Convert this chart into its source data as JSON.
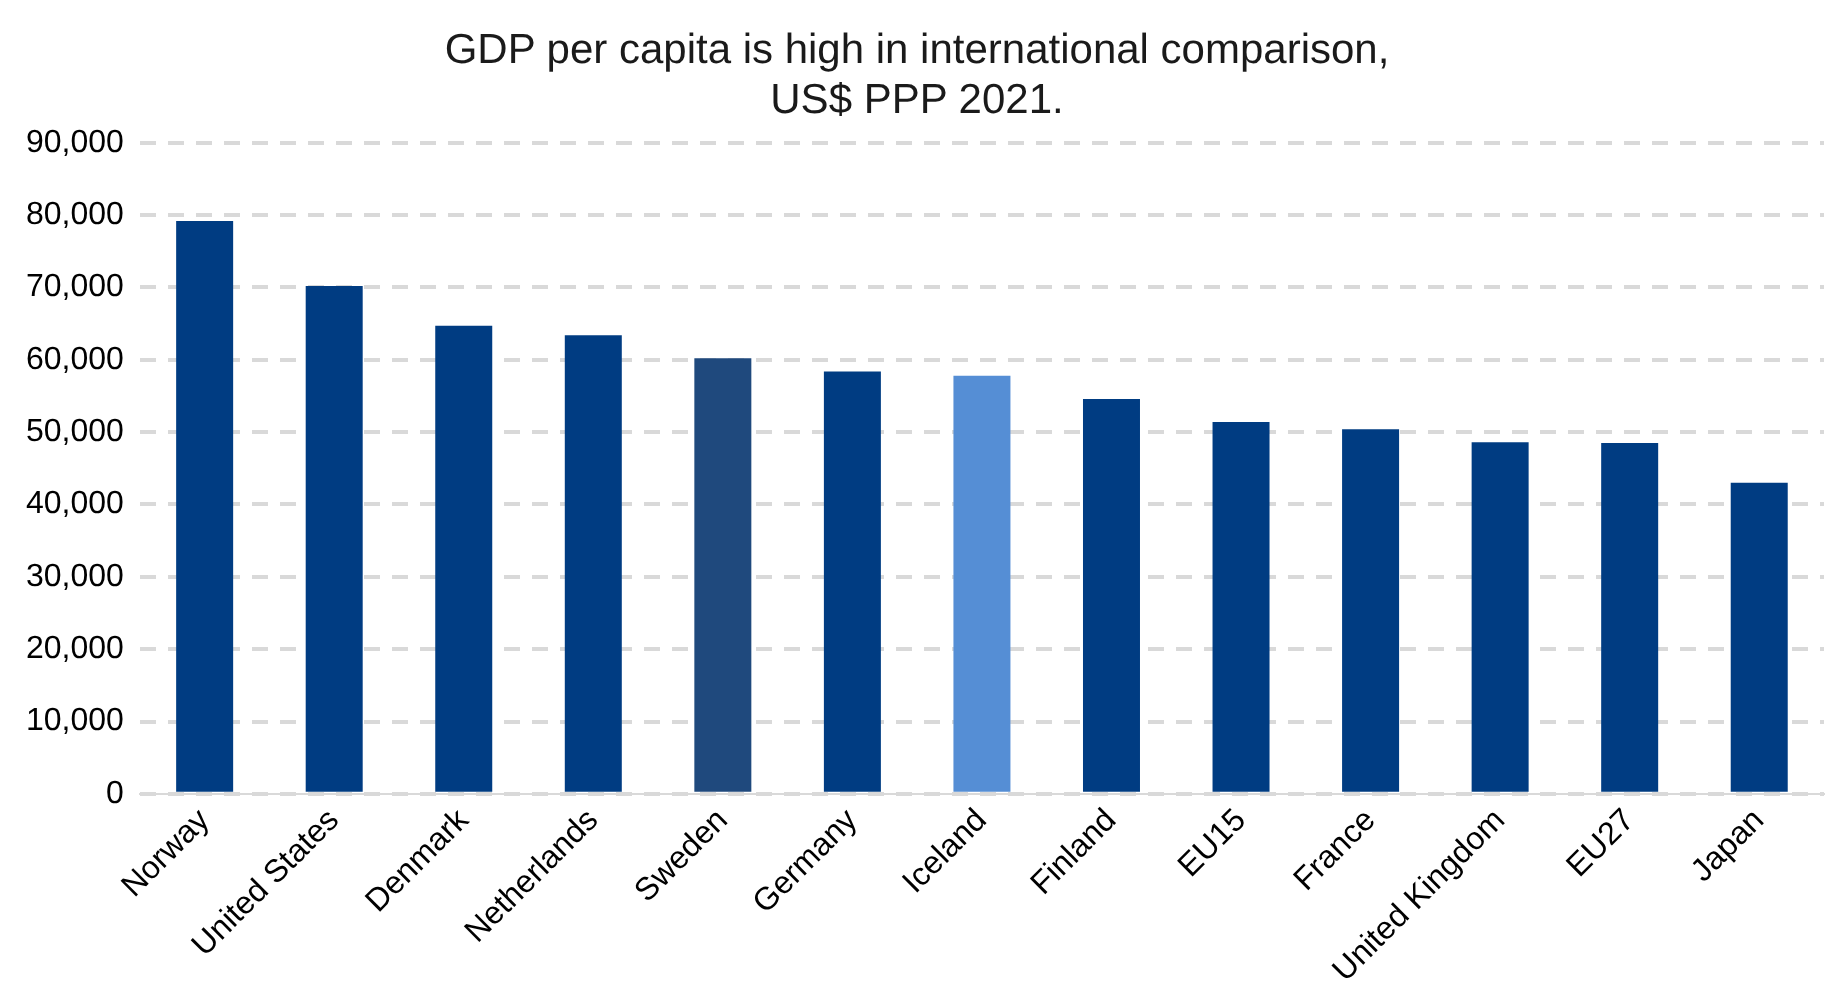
{
  "chart_data": {
    "type": "bar",
    "title": [
      "GDP per capita is high in international comparison,",
      "US$ PPP 2021."
    ],
    "categories": [
      "Norway",
      "United States",
      "Denmark",
      "Netherlands",
      "Sweden",
      "Germany",
      "Iceland",
      "Finland",
      "EU15",
      "France",
      "United Kingdom",
      "EU27",
      "Japan"
    ],
    "values": [
      79200,
      70200,
      64700,
      63400,
      60200,
      58400,
      57800,
      54600,
      51400,
      50400,
      48600,
      48500,
      43000
    ],
    "colors": [
      "#003c82",
      "#003c82",
      "#003c82",
      "#003c82",
      "#1f497d",
      "#003c82",
      "#558ed5",
      "#003c82",
      "#003c82",
      "#003c82",
      "#003c82",
      "#003c82",
      "#003c82"
    ],
    "ylim": [
      0,
      90000
    ],
    "yticks": [
      0,
      {
        "value": 10000,
        "label": "10,000"
      },
      {
        "value": 20000,
        "label": "20,000"
      },
      {
        "value": 30000,
        "label": "30,000"
      },
      {
        "value": 40000,
        "label": "40,000"
      },
      {
        "value": 50000,
        "label": "50,000"
      },
      {
        "value": 60000,
        "label": "60,000"
      },
      {
        "value": 70000,
        "label": "70,000"
      },
      {
        "value": 80000,
        "label": "80,000"
      },
      {
        "value": 90000,
        "label": "90,000"
      }
    ],
    "grid": "y",
    "legend": false
  }
}
